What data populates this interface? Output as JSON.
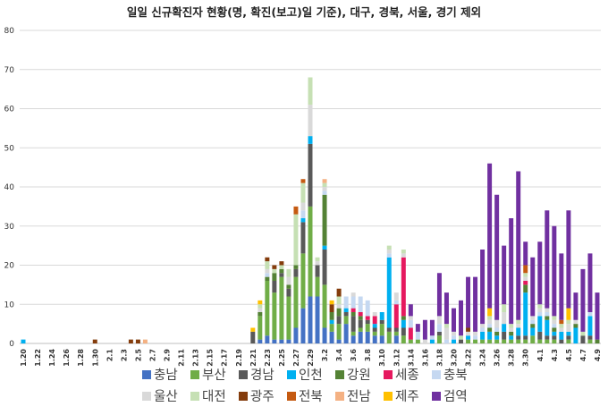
{
  "chart_data": {
    "type": "bar",
    "stacked": true,
    "title": "일일 신규확진자 현황(명, 확진(보고)일 기준), 대구, 경북, 서울, 경기 제외",
    "xlabel": "",
    "ylabel": "",
    "ylim": [
      0,
      80
    ],
    "yticks": [
      "0",
      "10",
      "20",
      "30",
      "40",
      "50",
      "60",
      "70",
      "80"
    ],
    "grid": true,
    "legend_position": "bottom",
    "categories": [
      "1.20",
      "1.21",
      "1.22",
      "1.23",
      "1.24",
      "1.25",
      "1.26",
      "1.27",
      "1.28",
      "1.29",
      "1.30",
      "1.31",
      "2.1",
      "2.2",
      "2.3",
      "2.4",
      "2.5",
      "2.6",
      "2.7",
      "2.8",
      "2.9",
      "2.10",
      "2.11",
      "2.12",
      "2.13",
      "2.14",
      "2.15",
      "2.16",
      "2.17",
      "2.18",
      "2.19",
      "2.20",
      "2.21",
      "2.22",
      "2.23",
      "2.24",
      "2.25",
      "2.26",
      "2.27",
      "2.28",
      "2.29",
      "3.1",
      "3.2",
      "3.3",
      "3.4",
      "3.5",
      "3.6",
      "3.7",
      "3.8",
      "3.9",
      "3.10",
      "3.11",
      "3.12",
      "3.13",
      "3.14",
      "3.15",
      "3.16",
      "3.17",
      "3.18",
      "3.19",
      "3.20",
      "3.21",
      "3.22",
      "3.23",
      "3.24",
      "3.25",
      "3.26",
      "3.27",
      "3.28",
      "3.29",
      "3.30",
      "3.31",
      "4.1",
      "4.2",
      "4.3",
      "4.4",
      "4.5",
      "4.6",
      "4.7",
      "4.8",
      "4.9"
    ],
    "xtick_labels": [
      "1.20",
      "1.22",
      "1.24",
      "1.26",
      "1.28",
      "1.30",
      "2.1",
      "2.3",
      "2.5",
      "2.7",
      "2.9",
      "2.11",
      "2.13",
      "2.15",
      "2.17",
      "2.19",
      "2.21",
      "2.23",
      "2.25",
      "2.27",
      "2.29",
      "3.2",
      "3.4",
      "3.6",
      "3.8",
      "3.10",
      "3.12",
      "3.14",
      "3.16",
      "3.18",
      "3.20",
      "3.22",
      "3.24",
      "3.26",
      "3.28",
      "3.30",
      "4.1",
      "4.3",
      "4.5",
      "4.7",
      "4.9"
    ],
    "series": [
      {
        "name": "충남",
        "color": "#4472c4",
        "values": [
          0,
          0,
          0,
          0,
          0,
          0,
          0,
          0,
          0,
          0,
          0,
          0,
          0,
          0,
          0,
          0,
          0,
          0,
          0,
          0,
          0,
          0,
          0,
          0,
          0,
          0,
          0,
          0,
          0,
          0,
          0,
          0,
          0,
          1,
          2,
          1,
          1,
          1,
          4,
          9,
          12,
          12,
          4,
          3,
          1,
          5,
          2,
          3,
          3,
          2,
          2,
          0,
          2,
          0,
          0,
          0,
          0,
          0,
          0,
          0,
          0,
          0,
          0,
          0,
          0,
          0,
          0,
          0,
          0,
          0,
          0,
          0,
          0,
          0,
          0,
          0,
          0,
          0,
          0,
          0,
          0
        ]
      },
      {
        "name": "부산",
        "color": "#70ad47",
        "values": [
          0,
          0,
          0,
          0,
          0,
          0,
          0,
          0,
          0,
          0,
          0,
          0,
          0,
          0,
          0,
          0,
          0,
          0,
          0,
          0,
          0,
          0,
          0,
          0,
          0,
          0,
          0,
          0,
          0,
          0,
          0,
          0,
          0,
          6,
          14,
          12,
          16,
          11,
          13,
          14,
          23,
          5,
          11,
          2,
          4,
          2,
          1,
          1,
          2,
          1,
          3,
          3,
          1,
          2,
          1,
          1,
          0,
          0,
          2,
          0,
          0,
          0,
          1,
          1,
          1,
          1,
          1,
          1,
          1,
          1,
          1,
          2,
          1,
          1,
          1,
          0,
          1,
          0,
          0,
          1,
          0
        ]
      },
      {
        "name": "경남",
        "color": "#595959",
        "values": [
          0,
          0,
          0,
          0,
          0,
          0,
          0,
          0,
          0,
          0,
          0,
          0,
          0,
          0,
          0,
          0,
          0,
          0,
          0,
          0,
          0,
          0,
          0,
          0,
          0,
          0,
          0,
          0,
          0,
          0,
          0,
          0,
          3,
          0,
          0,
          3,
          1,
          2,
          2,
          8,
          16,
          3,
          9,
          0,
          2,
          1,
          4,
          2,
          1,
          1,
          1,
          1,
          1,
          2,
          0,
          0,
          0,
          0,
          1,
          0,
          0,
          1,
          0,
          0,
          0,
          0,
          0,
          2,
          0,
          1,
          1,
          0,
          2,
          1,
          1,
          1,
          1,
          0,
          2,
          1,
          0
        ]
      },
      {
        "name": "인천",
        "color": "#00b0f0",
        "values": [
          1,
          0,
          0,
          0,
          0,
          0,
          0,
          0,
          0,
          0,
          0,
          0,
          0,
          0,
          0,
          0,
          0,
          0,
          0,
          0,
          0,
          0,
          0,
          0,
          0,
          0,
          0,
          0,
          0,
          0,
          0,
          0,
          0,
          0,
          0,
          0,
          0,
          0,
          0,
          1,
          2,
          0,
          1,
          1,
          0,
          1,
          0,
          0,
          0,
          1,
          2,
          18,
          0,
          2,
          0,
          0,
          0,
          1,
          0,
          0,
          1,
          0,
          1,
          0,
          2,
          2,
          1,
          2,
          1,
          2,
          11,
          2,
          4,
          4,
          1,
          2,
          1,
          4,
          0,
          5,
          0
        ]
      },
      {
        "name": "강원",
        "color": "#548235",
        "values": [
          0,
          0,
          0,
          0,
          0,
          0,
          0,
          0,
          0,
          0,
          0,
          0,
          0,
          0,
          0,
          0,
          0,
          0,
          0,
          0,
          0,
          0,
          0,
          0,
          0,
          0,
          0,
          0,
          0,
          0,
          0,
          0,
          0,
          1,
          1,
          2,
          1,
          1,
          1,
          0,
          0,
          0,
          13,
          2,
          2,
          0,
          1,
          1,
          0,
          0,
          0,
          0,
          0,
          1,
          0,
          0,
          0,
          0,
          0,
          0,
          0,
          0,
          0,
          0,
          0,
          1,
          1,
          0,
          1,
          0,
          2,
          1,
          0,
          1,
          1,
          0,
          0,
          1,
          0,
          0,
          1
        ]
      },
      {
        "name": "세종",
        "color": "#e6195f",
        "values": [
          0,
          0,
          0,
          0,
          0,
          0,
          0,
          0,
          0,
          0,
          0,
          0,
          0,
          0,
          0,
          0,
          0,
          0,
          0,
          0,
          0,
          0,
          0,
          0,
          0,
          0,
          0,
          0,
          0,
          0,
          0,
          0,
          0,
          0,
          0,
          0,
          0,
          0,
          0,
          0,
          0,
          0,
          0,
          0,
          0,
          0,
          1,
          1,
          1,
          2,
          0,
          0,
          6,
          15,
          3,
          0,
          0,
          0,
          0,
          0,
          0,
          0,
          0,
          0,
          0,
          0,
          0,
          0,
          0,
          0,
          1,
          0,
          0,
          0,
          0,
          0,
          0,
          0,
          0,
          0,
          0
        ]
      },
      {
        "name": "충북",
        "color": "#c5d8f1",
        "values": [
          0,
          0,
          0,
          0,
          0,
          0,
          0,
          0,
          0,
          0,
          0,
          0,
          0,
          0,
          0,
          0,
          0,
          0,
          0,
          0,
          0,
          0,
          0,
          0,
          0,
          0,
          0,
          0,
          0,
          0,
          0,
          0,
          0,
          0,
          1,
          0,
          0,
          0,
          0,
          2,
          0,
          0,
          1,
          0,
          0,
          3,
          3,
          4,
          4,
          0,
          0,
          1,
          1,
          0,
          2,
          2,
          0,
          1,
          2,
          1,
          1,
          0,
          0,
          1,
          1,
          1,
          1,
          0,
          0,
          0,
          0,
          1,
          1,
          1,
          1,
          0,
          0,
          0,
          0,
          1,
          0
        ]
      },
      {
        "name": "울산",
        "color": "#d9d9d9",
        "values": [
          0,
          0,
          0,
          0,
          0,
          0,
          0,
          0,
          0,
          0,
          0,
          0,
          0,
          0,
          0,
          0,
          0,
          0,
          0,
          0,
          0,
          0,
          0,
          0,
          0,
          0,
          0,
          0,
          0,
          0,
          0,
          0,
          0,
          1,
          1,
          0,
          0,
          2,
          0,
          2,
          8,
          1,
          1,
          0,
          1,
          0,
          1,
          0,
          0,
          1,
          0,
          1,
          2,
          1,
          1,
          0,
          1,
          0,
          2,
          3,
          1,
          0,
          1,
          1,
          1,
          1,
          2,
          3,
          1,
          1,
          1,
          1,
          1,
          1,
          1,
          1,
          2,
          1,
          0,
          0,
          0
        ]
      },
      {
        "name": "대전",
        "color": "#c6e0b4",
        "values": [
          0,
          0,
          0,
          0,
          0,
          0,
          0,
          0,
          0,
          0,
          0,
          0,
          0,
          0,
          0,
          0,
          0,
          0,
          0,
          0,
          0,
          0,
          0,
          0,
          0,
          0,
          0,
          0,
          0,
          0,
          0,
          0,
          0,
          1,
          2,
          1,
          1,
          2,
          13,
          5,
          7,
          1,
          1,
          0,
          2,
          0,
          0,
          0,
          0,
          0,
          0,
          1,
          0,
          1,
          0,
          0,
          0,
          0,
          0,
          1,
          0,
          1,
          0,
          0,
          0,
          1,
          0,
          2,
          1,
          1,
          1,
          0,
          1,
          0,
          1,
          1,
          1,
          0,
          1,
          0,
          0
        ]
      },
      {
        "name": "광주",
        "color": "#843c0c",
        "values": [
          0,
          0,
          0,
          0,
          0,
          0,
          0,
          0,
          0,
          0,
          0,
          0,
          0,
          0,
          0,
          0,
          0,
          0,
          0,
          0,
          0,
          0,
          0,
          0,
          0,
          0,
          0,
          0,
          0,
          0,
          0,
          0,
          0,
          0,
          1,
          1,
          1,
          0,
          0,
          0,
          0,
          0,
          0,
          2,
          2,
          0,
          0,
          0,
          0,
          0,
          0,
          0,
          0,
          0,
          0,
          0,
          0,
          0,
          0,
          0,
          0,
          0,
          1,
          0,
          0,
          0,
          0,
          0,
          0,
          0,
          0,
          0,
          0,
          0,
          0,
          0,
          0,
          0,
          0,
          0,
          0
        ]
      },
      {
        "name": "전북",
        "color": "#c55a11",
        "values": [
          0,
          0,
          0,
          0,
          0,
          0,
          0,
          0,
          0,
          0,
          0,
          0,
          0,
          0,
          0,
          0,
          0,
          0,
          0,
          0,
          0,
          0,
          0,
          0,
          0,
          0,
          0,
          0,
          0,
          0,
          0,
          0,
          0,
          0,
          0,
          0,
          0,
          0,
          2,
          1,
          0,
          0,
          0,
          0,
          0,
          0,
          0,
          0,
          0,
          0,
          0,
          0,
          0,
          0,
          0,
          0,
          0,
          0,
          0,
          0,
          0,
          0,
          0,
          0,
          0,
          0,
          0,
          0,
          0,
          0,
          2,
          0,
          0,
          0,
          0,
          1,
          0,
          0,
          0,
          0,
          0
        ]
      },
      {
        "name": "전남",
        "color": "#f4b183",
        "values": [
          0,
          0,
          0,
          0,
          0,
          0,
          0,
          0,
          0,
          0,
          0,
          0,
          0,
          0,
          0,
          0,
          0,
          0,
          0,
          0,
          0,
          0,
          0,
          0,
          0,
          0,
          0,
          0,
          0,
          0,
          0,
          0,
          0,
          0,
          0,
          0,
          0,
          0,
          0,
          0,
          0,
          0,
          1,
          0,
          0,
          0,
          0,
          0,
          0,
          0,
          0,
          0,
          0,
          0,
          0,
          0,
          0,
          0,
          0,
          0,
          0,
          0,
          0,
          0,
          0,
          0,
          0,
          0,
          0,
          0,
          0,
          0,
          0,
          0,
          0,
          0,
          0,
          0,
          0,
          0,
          0
        ]
      },
      {
        "name": "제주",
        "color": "#ffc000",
        "values": [
          0,
          0,
          0,
          0,
          0,
          0,
          0,
          0,
          0,
          0,
          0,
          0,
          0,
          0,
          0,
          0,
          0,
          0,
          0,
          0,
          0,
          0,
          0,
          0,
          0,
          0,
          0,
          0,
          0,
          0,
          0,
          0,
          1,
          1,
          0,
          0,
          0,
          0,
          0,
          0,
          0,
          0,
          0,
          1,
          0,
          0,
          0,
          0,
          0,
          0,
          0,
          0,
          0,
          0,
          0,
          0,
          0,
          0,
          0,
          0,
          0,
          0,
          0,
          0,
          0,
          2,
          0,
          0,
          0,
          0,
          0,
          0,
          0,
          0,
          0,
          0,
          3,
          0,
          0,
          0,
          0
        ]
      },
      {
        "name": "검역",
        "color": "#7030a0",
        "values": [
          0,
          0,
          0,
          0,
          0,
          0,
          0,
          0,
          0,
          0,
          0,
          0,
          0,
          0,
          0,
          0,
          0,
          0,
          0,
          0,
          0,
          0,
          0,
          0,
          0,
          0,
          0,
          0,
          0,
          0,
          0,
          0,
          0,
          0,
          0,
          0,
          0,
          0,
          0,
          0,
          0,
          0,
          0,
          0,
          0,
          0,
          0,
          0,
          0,
          0,
          0,
          0,
          0,
          0,
          3,
          2,
          5,
          4,
          11,
          8,
          6,
          9,
          13,
          14,
          19,
          37,
          32,
          15,
          27,
          38,
          6,
          15,
          16,
          25,
          23,
          17,
          25,
          7,
          16,
          15,
          12
        ]
      }
    ],
    "extra_bars": [
      {
        "category": "1.30",
        "color": "#843c0c",
        "value": 1
      },
      {
        "category": "2.4",
        "color": "#843c0c",
        "value": 1
      },
      {
        "category": "2.5",
        "color": "#843c0c",
        "value": 1
      },
      {
        "category": "2.6",
        "color": "#f4b183",
        "value": 1
      }
    ]
  }
}
